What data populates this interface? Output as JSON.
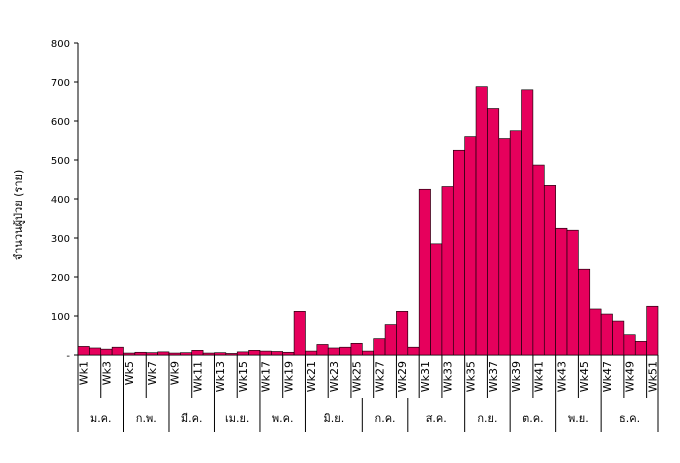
{
  "chart_data": {
    "type": "bar",
    "title": "",
    "xlabel": "",
    "ylabel": "จำนวนผู้ป่วย (ราย)",
    "ylim": [
      0,
      800
    ],
    "yticks": [
      0,
      100,
      200,
      300,
      400,
      500,
      600,
      700,
      800
    ],
    "ytick_labels": [
      "-",
      "100",
      "200",
      "300",
      "400",
      "500",
      "600",
      "700",
      "800"
    ],
    "bar_color": "#E6005C",
    "categories": [
      "Wk1",
      "Wk2",
      "Wk3",
      "Wk4",
      "Wk5",
      "Wk6",
      "Wk7",
      "Wk8",
      "Wk9",
      "Wk10",
      "Wk11",
      "Wk12",
      "Wk13",
      "Wk14",
      "Wk15",
      "Wk16",
      "Wk17",
      "Wk18",
      "Wk19",
      "Wk20",
      "Wk21",
      "Wk22",
      "Wk23",
      "Wk24",
      "Wk25",
      "Wk26",
      "Wk27",
      "Wk28",
      "Wk29",
      "Wk30",
      "Wk31",
      "Wk32",
      "Wk33",
      "Wk34",
      "Wk35",
      "Wk36",
      "Wk37",
      "Wk38",
      "Wk39",
      "Wk40",
      "Wk41",
      "Wk42",
      "Wk43",
      "Wk44",
      "Wk45",
      "Wk46",
      "Wk47",
      "Wk48",
      "Wk49",
      "Wk50",
      "Wk51"
    ],
    "tick_labels": [
      "Wk1",
      "Wk3",
      "Wk5",
      "Wk7",
      "Wk9",
      "Wk11",
      "Wk13",
      "Wk15",
      "Wk17",
      "Wk19",
      "Wk21",
      "Wk23",
      "Wk25",
      "Wk27",
      "Wk29",
      "Wk31",
      "Wk33",
      "Wk35",
      "Wk37",
      "Wk39",
      "Wk41",
      "Wk43",
      "Wk45",
      "Wk47",
      "Wk49",
      "Wk51"
    ],
    "values": [
      22,
      18,
      15,
      20,
      5,
      7,
      6,
      8,
      5,
      6,
      12,
      5,
      6,
      4,
      8,
      12,
      10,
      9,
      7,
      112,
      10,
      27,
      18,
      20,
      30,
      10,
      42,
      78,
      112,
      20,
      425,
      285,
      432,
      525,
      560,
      688,
      632,
      555,
      575,
      680,
      487,
      435,
      325,
      320,
      220,
      118,
      105,
      87,
      52,
      35,
      125
    ],
    "months": [
      {
        "label": "ม.ค.",
        "start": 0,
        "end": 4
      },
      {
        "label": "ก.พ.",
        "start": 4,
        "end": 8
      },
      {
        "label": "มี.ค.",
        "start": 8,
        "end": 12
      },
      {
        "label": "เม.ย.",
        "start": 12,
        "end": 16
      },
      {
        "label": "พ.ค.",
        "start": 16,
        "end": 20
      },
      {
        "label": "มิ.ย.",
        "start": 20,
        "end": 25
      },
      {
        "label": "ก.ค.",
        "start": 25,
        "end": 29
      },
      {
        "label": "ส.ค.",
        "start": 29,
        "end": 34
      },
      {
        "label": "ก.ย.",
        "start": 34,
        "end": 38
      },
      {
        "label": "ต.ค.",
        "start": 38,
        "end": 42
      },
      {
        "label": "พ.ย.",
        "start": 42,
        "end": 46
      },
      {
        "label": "ธ.ค.",
        "start": 46,
        "end": 51
      }
    ]
  }
}
